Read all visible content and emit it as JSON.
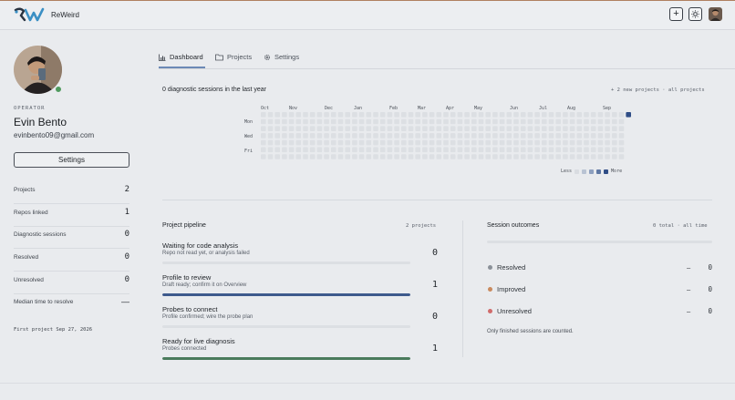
{
  "app": {
    "name": "ReWeird"
  },
  "header": {
    "add_icon": "plus-icon",
    "theme_icon": "sun-icon"
  },
  "profile": {
    "role": "OPERATOR",
    "name": "Evin Bento",
    "email": "evinbento09@gmail.com",
    "settings_label": "Settings",
    "status_color": "#4f9a5e"
  },
  "stats": [
    {
      "label": "Projects",
      "value": "2"
    },
    {
      "label": "Repos linked",
      "value": "1"
    },
    {
      "label": "Diagnostic sessions",
      "value": "0"
    },
    {
      "label": "Resolved",
      "value": "0"
    },
    {
      "label": "Unresolved",
      "value": "0"
    },
    {
      "label": "Median time to resolve",
      "value": "—"
    }
  ],
  "first_project": "First project Sep 27, 2026",
  "tabs": [
    {
      "label": "Dashboard",
      "icon": "bar-chart-icon",
      "active": true
    },
    {
      "label": "Projects",
      "icon": "folder-icon",
      "active": false
    },
    {
      "label": "Settings",
      "icon": "gear-icon",
      "active": false
    }
  ],
  "activity": {
    "title": "0 diagnostic sessions in the last year",
    "links": "+ 2 new projects · all projects",
    "months": [
      "Oct",
      "Nov",
      "Dec",
      "Jan",
      "Feb",
      "Mar",
      "Apr",
      "May",
      "Jun",
      "Jul",
      "Aug",
      "Sep"
    ],
    "days": [
      "Mon",
      "Wed",
      "Fri"
    ],
    "legend_less": "Less",
    "legend_more": "More",
    "legend_colors": [
      "#d9dce1",
      "#b9c3d3",
      "#8ea0bf",
      "#5f78a3",
      "#2f4d86"
    ],
    "cell_color": "#dcdfe3",
    "highlight_color": "#2f4d86"
  },
  "pipeline": {
    "title": "Project pipeline",
    "meta": "2 projects",
    "stages": [
      {
        "title": "Waiting for code analysis",
        "sub": "Repo not read yet, or analysis failed",
        "value": "0",
        "fill": 0,
        "color": "#3d5a8c"
      },
      {
        "title": "Profile to review",
        "sub": "Draft ready; confirm it on Overview",
        "value": "1",
        "fill": 1,
        "color": "#3d5a8c"
      },
      {
        "title": "Probes to connect",
        "sub": "Profile confirmed; wire the probe plan",
        "value": "0",
        "fill": 0,
        "color": "#3d5a8c"
      },
      {
        "title": "Ready for live diagnosis",
        "sub": "Probes connected",
        "value": "1",
        "fill": 1,
        "color": "#4a7b5c"
      }
    ]
  },
  "outcomes": {
    "title": "Session outcomes",
    "meta": "0 total · all time",
    "rows": [
      {
        "label": "Resolved",
        "dash": "–",
        "value": "0",
        "color": "#8b9199"
      },
      {
        "label": "Improved",
        "dash": "–",
        "value": "0",
        "color": "#c98a5e"
      },
      {
        "label": "Unresolved",
        "dash": "–",
        "value": "0",
        "color": "#d06b6b"
      }
    ],
    "note": "Only finished sessions are counted."
  }
}
